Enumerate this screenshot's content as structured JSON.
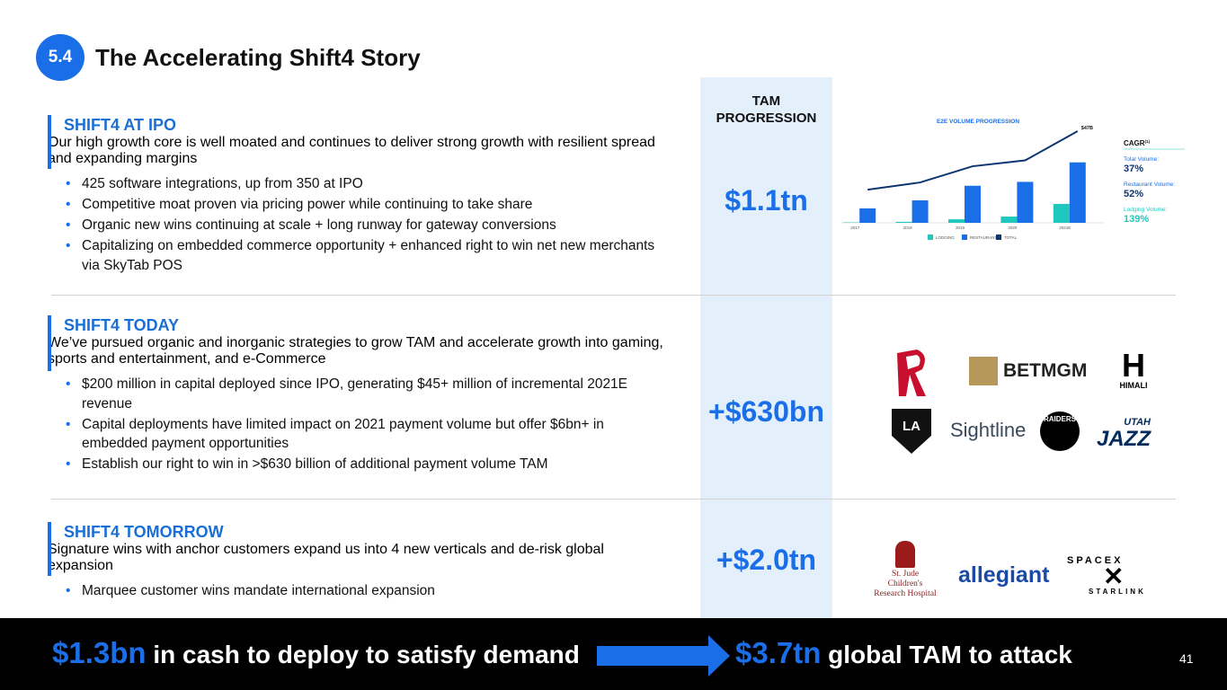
{
  "header": {
    "badge": "5.4",
    "title": "The Accelerating Shift4 Story"
  },
  "tam_heading": "TAM PROGRESSION",
  "sections": [
    {
      "heading": "SHIFT4 AT IPO",
      "subheading": "Our high growth core is well moated and continues to deliver strong growth with resilient spread and expanding margins",
      "bullets": [
        "425 software integrations, up from 350 at IPO",
        "Competitive moat proven via pricing power while continuing to take share",
        "Organic new wins continuing at scale + long runway for gateway conversions",
        "Capitalizing on embedded commerce opportunity + enhanced right to win net new merchants via SkyTab POS"
      ],
      "tam": "$1.1tn"
    },
    {
      "heading": "SHIFT4 TODAY",
      "subheading": "We’ve pursued organic and inorganic strategies to grow TAM and accelerate growth into gaming, sports and entertainment, and e-Commerce",
      "bullets": [
        "$200 million in capital deployed since IPO, generating $45+ million of incremental 2021E revenue",
        "Capital deployments have limited impact on 2021 payment volume but offer $6bn+ in embedded payment opportunities",
        "Establish our right to win in >$630 billion of additional payment volume TAM"
      ],
      "tam": "+$630bn"
    },
    {
      "heading": "SHIFT4 TOMORROW",
      "subheading": "Signature wins with anchor customers expand us into 4 new verticals and de-risk global expansion",
      "bullets": [
        "Marquee customer wins mandate international expansion"
      ],
      "tam": "+$2.0tn"
    }
  ],
  "chart_data": {
    "type": "bar",
    "title": "E2E VOLUME PROGRESSION",
    "categories": [
      "2017",
      "2018",
      "2019",
      "2020",
      "2021E"
    ],
    "series": [
      {
        "name": "LODGING",
        "color": "#1fc8bd",
        "values": [
          0.2,
          0.5,
          1.8,
          3.2,
          9.7
        ]
      },
      {
        "name": "RESTAURANTS",
        "color": "#1a6fe8",
        "values": [
          7.4,
          11.5,
          19,
          21,
          31
        ]
      },
      {
        "name": "TOTAL",
        "type": "line",
        "color": "#0d3570",
        "values": [
          17,
          20.7,
          29,
          32,
          47
        ],
        "value_labels": [
          null,
          null,
          null,
          null,
          "$47B"
        ]
      }
    ]
  },
  "cagr": {
    "title": "CAGR",
    "note": "(1)",
    "items": [
      {
        "label": "Total Volume:",
        "value": "37%"
      },
      {
        "label": "Restaurant Volume:",
        "value": "52%"
      },
      {
        "label": "Lodging Volume:",
        "value": "139%"
      }
    ]
  },
  "logos": {
    "betmgm": "BETMGM",
    "himali": "HIMALI",
    "kings": "LA",
    "sightline": "Sightline",
    "raiders": "RAIDERS",
    "utah": "UTAH",
    "jazz": "JAZZ",
    "stjude": "St. Jude Children's Research Hospital",
    "allegiant": "allegiant",
    "spacex": "SPACEX",
    "starlink": "STARLINK"
  },
  "footer": {
    "left_amount": "$1.3bn",
    "left_text": "in cash to deploy to satisfy demand",
    "right_amount": "$3.7tn",
    "right_text": "global TAM to attack",
    "page": "41"
  }
}
